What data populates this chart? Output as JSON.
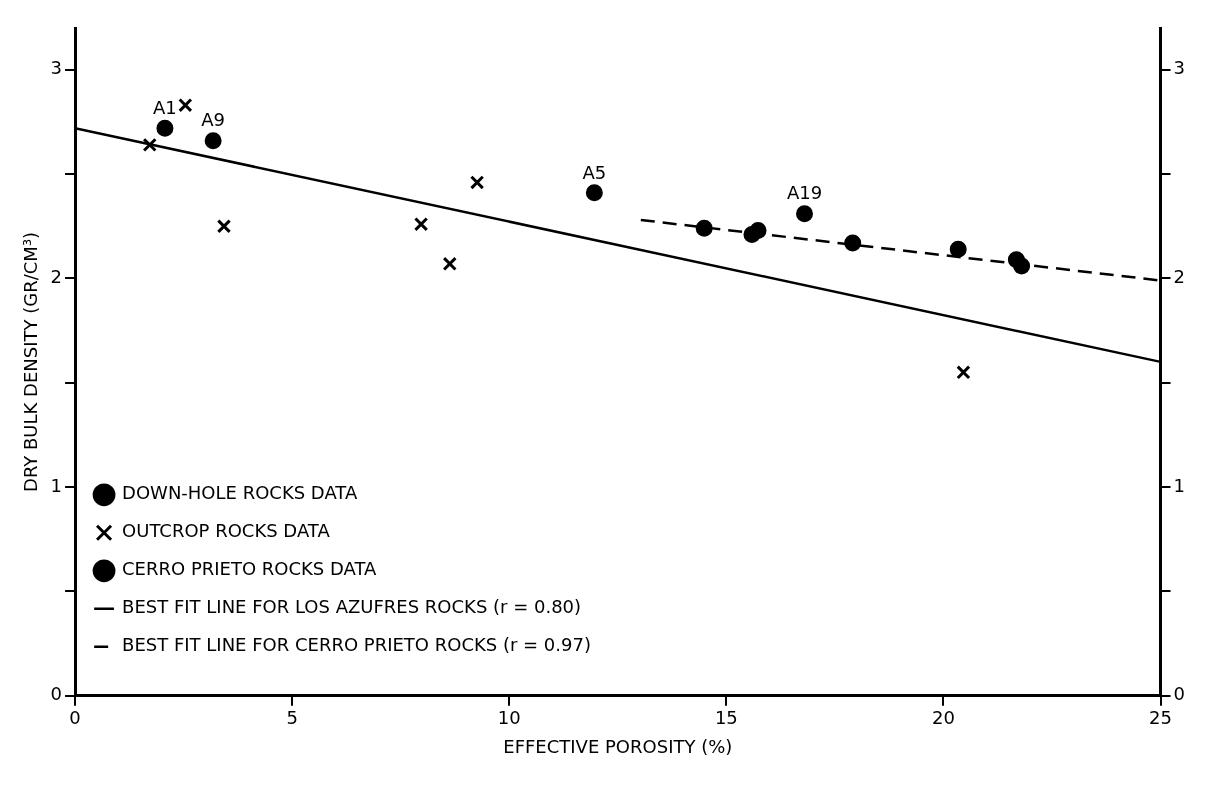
{
  "chart_data": {
    "type": "scatter",
    "xlabel": "EFFECTIVE POROSITY (%)",
    "ylabel": "DRY BULK DENSITY (GR/CM³)",
    "xlim": [
      0,
      25
    ],
    "xticks": [
      0,
      5,
      10,
      15,
      20,
      25
    ],
    "ylim": [
      0,
      3.2
    ],
    "yticks": [
      0,
      {
        "value": 0.5,
        "label": null
      },
      1,
      {
        "value": 1.5,
        "label": null
      },
      2,
      {
        "value": 2.5,
        "label": null
      },
      3
    ],
    "y2lim": [
      0,
      3.2
    ],
    "y2ticks": [
      0,
      {
        "value": 0.5,
        "label": null
      },
      1,
      {
        "value": 1.5,
        "label": null
      },
      2,
      {
        "value": 2.5,
        "label": null
      },
      3
    ],
    "legend": "bottom left",
    "series": [
      {
        "name": "DOWN-HOLE ROCKS DATA",
        "marker": "circle",
        "color": "#000000",
        "x": [
          2.07,
          3.18,
          11.96,
          16.8
        ],
        "values": [
          2.72,
          2.66,
          2.41,
          2.31
        ]
      },
      {
        "name": "OUTCROP ROCKS DATA",
        "marker": "cross",
        "color": "#000000",
        "x": [
          1.72,
          2.54,
          3.43,
          7.97,
          8.63,
          9.26,
          20.46
        ],
        "values": [
          2.64,
          2.83,
          2.25,
          2.26,
          2.07,
          2.46,
          1.55
        ]
      },
      {
        "name": "CERRO PRIETO ROCKS DATA",
        "marker": "circle",
        "color": "#000000",
        "x": [
          14.49,
          15.59,
          15.73,
          17.91,
          20.34,
          21.68,
          21.8
        ],
        "values": [
          2.24,
          2.21,
          2.23,
          2.17,
          2.14,
          2.09,
          2.06
        ]
      },
      {
        "name": "BEST FIT LINE FOR LOS AZUFRES ROCKS (r = 0.80)",
        "type": "line",
        "marker": "none",
        "line_style": "solid",
        "color": "#000000",
        "x": [
          0,
          25
        ],
        "values": [
          2.72,
          1.6
        ]
      },
      {
        "name": "BEST FIT LINE FOR CERRO PRIETO ROCKS (r = 0.97)",
        "type": "line",
        "marker": "none",
        "line_style": "dashed",
        "color": "#000000",
        "x": [
          13.03,
          25
        ],
        "values": [
          2.28,
          1.99
        ]
      }
    ],
    "annotations": [
      {
        "text": "A1",
        "x": 2.07,
        "y": 2.72
      },
      {
        "text": "A9",
        "x": 3.18,
        "y": 2.66
      },
      {
        "text": "A5",
        "x": 11.96,
        "y": 2.41
      },
      {
        "text": "A19",
        "x": 16.8,
        "y": 2.31
      }
    ]
  }
}
